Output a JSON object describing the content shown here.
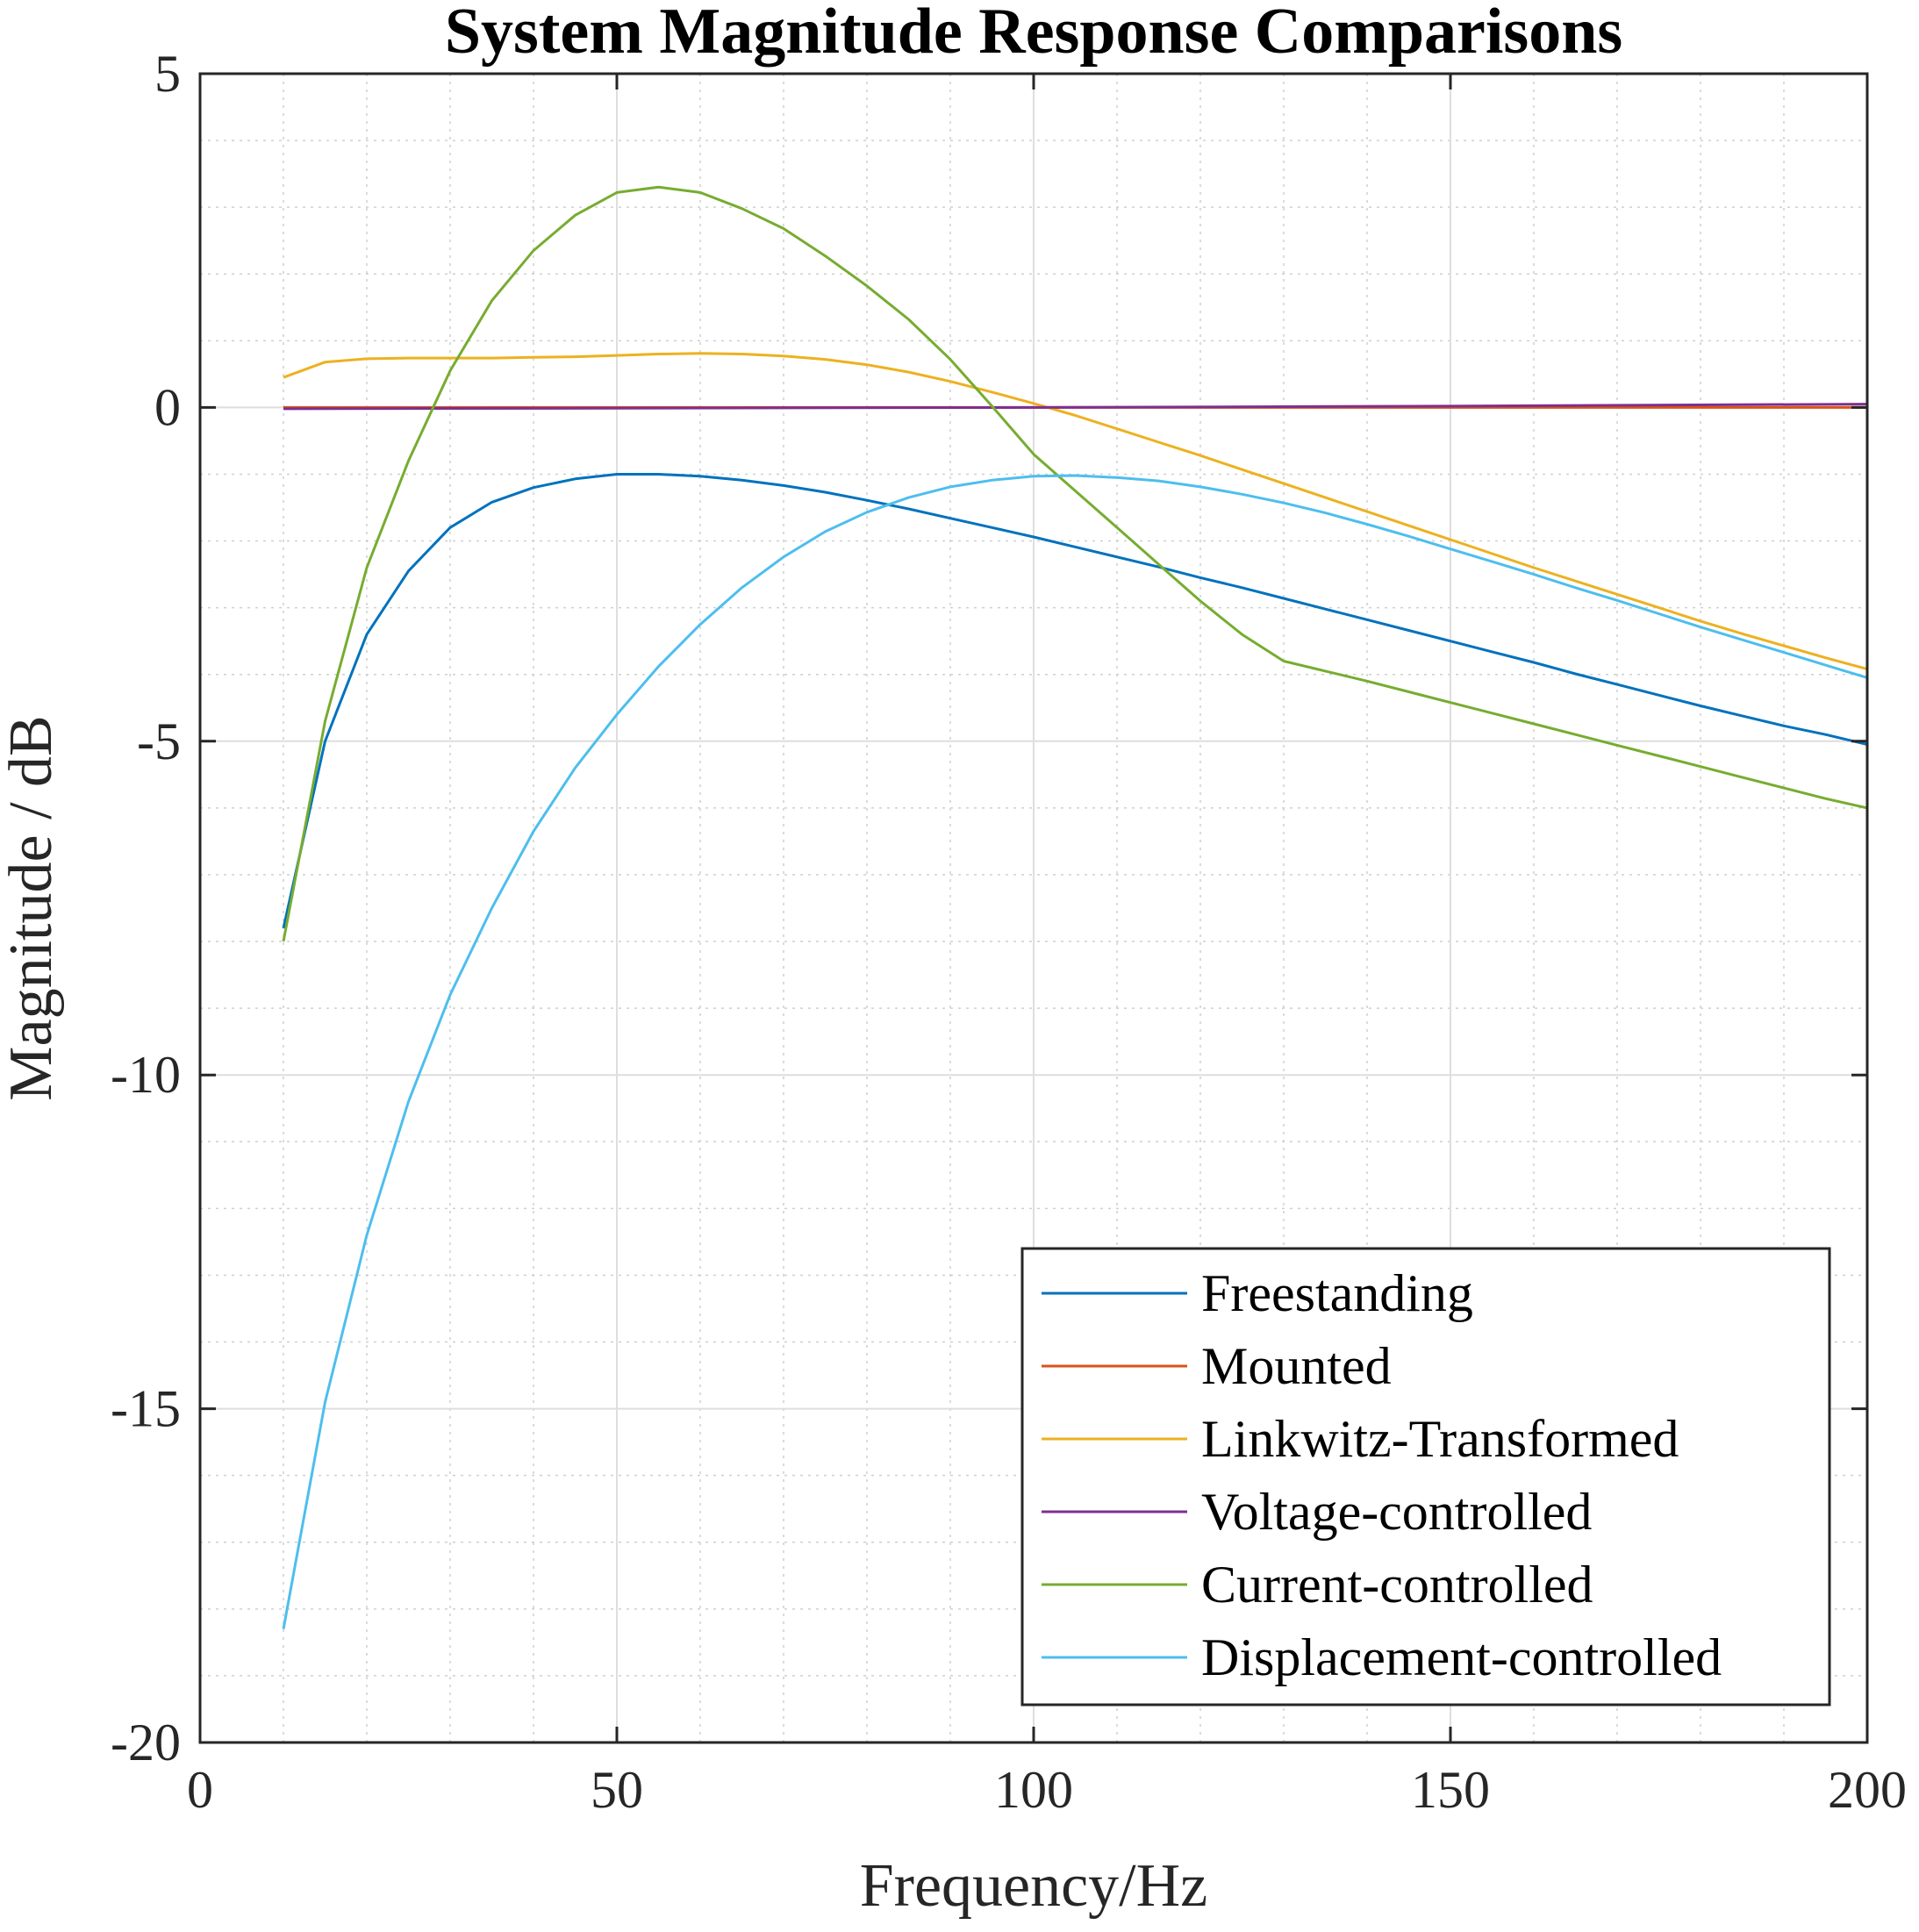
{
  "chart_data": {
    "type": "line",
    "title": "System Magnitude Response Comparisons",
    "xlabel": "Frequency/Hz",
    "ylabel": "Magnitude / dB",
    "xlim": [
      0,
      200
    ],
    "ylim": [
      -20,
      5
    ],
    "xticks": [
      0,
      50,
      100,
      150,
      200
    ],
    "yticks": [
      -20,
      -15,
      -10,
      -5,
      0,
      5
    ],
    "grid": true,
    "minor_grid": true,
    "legend_position": "bottom-right",
    "series": [
      {
        "name": "Freestanding",
        "color": "#0072BD",
        "x": [
          10,
          15,
          20,
          25,
          30,
          35,
          40,
          45,
          50,
          55,
          60,
          65,
          70,
          75,
          80,
          85,
          90,
          95,
          100,
          105,
          110,
          115,
          120,
          125,
          130,
          135,
          140,
          145,
          150,
          155,
          160,
          165,
          170,
          175,
          180,
          185,
          190,
          195,
          200
        ],
        "values": [
          -7.8,
          -5.0,
          -3.4,
          -2.45,
          -1.8,
          -1.42,
          -1.2,
          -1.07,
          -1.0,
          -1.0,
          -1.03,
          -1.09,
          -1.17,
          -1.27,
          -1.39,
          -1.52,
          -1.66,
          -1.8,
          -1.94,
          -2.09,
          -2.24,
          -2.39,
          -2.55,
          -2.7,
          -2.86,
          -3.02,
          -3.18,
          -3.34,
          -3.5,
          -3.66,
          -3.82,
          -3.99,
          -4.15,
          -4.31,
          -4.47,
          -4.62,
          -4.77,
          -4.9,
          -5.05
        ]
      },
      {
        "name": "Mounted",
        "color": "#D95319",
        "x": [
          10,
          200
        ],
        "values": [
          0.0,
          0.0
        ]
      },
      {
        "name": "Linkwitz-Transformed",
        "color": "#EDB120",
        "x": [
          10,
          15,
          20,
          25,
          30,
          35,
          40,
          45,
          50,
          55,
          60,
          65,
          70,
          75,
          80,
          85,
          90,
          95,
          100,
          105,
          110,
          115,
          120,
          125,
          130,
          135,
          140,
          145,
          150,
          155,
          160,
          165,
          170,
          175,
          180,
          185,
          190,
          195,
          200
        ],
        "values": [
          0.45,
          0.68,
          0.73,
          0.74,
          0.74,
          0.74,
          0.75,
          0.76,
          0.78,
          0.8,
          0.81,
          0.8,
          0.77,
          0.72,
          0.64,
          0.53,
          0.39,
          0.23,
          0.06,
          -0.12,
          -0.32,
          -0.52,
          -0.72,
          -0.93,
          -1.14,
          -1.35,
          -1.56,
          -1.77,
          -1.98,
          -2.19,
          -2.4,
          -2.6,
          -2.8,
          -3.0,
          -3.2,
          -3.39,
          -3.57,
          -3.75,
          -3.92
        ]
      },
      {
        "name": "Voltage-controlled",
        "color": "#7E2F8E",
        "x": [
          10,
          50,
          100,
          150,
          200
        ],
        "values": [
          -0.02,
          -0.01,
          0.0,
          0.02,
          0.05
        ]
      },
      {
        "name": "Current-controlled",
        "color": "#77AC30",
        "x": [
          10,
          15,
          20,
          25,
          30,
          35,
          40,
          45,
          50,
          55,
          60,
          65,
          70,
          75,
          80,
          85,
          90,
          95,
          100,
          105,
          110,
          115,
          120,
          125,
          130,
          135,
          140,
          145,
          150,
          155,
          160,
          165,
          170,
          175,
          180,
          185,
          190,
          195,
          200
        ],
        "values": [
          -8.0,
          -4.7,
          -2.4,
          -0.8,
          0.55,
          1.6,
          2.35,
          2.88,
          3.22,
          3.3,
          3.22,
          2.98,
          2.68,
          2.27,
          1.82,
          1.32,
          0.72,
          0.02,
          -0.7,
          -1.25,
          -1.8,
          -2.35,
          -2.9,
          -3.4,
          -3.8,
          -3.95,
          -4.1,
          -4.26,
          -4.42,
          -4.58,
          -4.74,
          -4.9,
          -5.06,
          -5.22,
          -5.38,
          -5.54,
          -5.7,
          -5.86,
          -6.0
        ]
      },
      {
        "name": "Displacement-controlled",
        "color": "#4DBEEE",
        "x": [
          10,
          15,
          20,
          25,
          30,
          35,
          40,
          45,
          50,
          55,
          60,
          65,
          70,
          75,
          80,
          85,
          90,
          95,
          100,
          105,
          110,
          115,
          120,
          125,
          130,
          135,
          140,
          145,
          150,
          155,
          160,
          165,
          170,
          175,
          180,
          185,
          190,
          195,
          200
        ],
        "values": [
          -18.3,
          -14.9,
          -12.4,
          -10.4,
          -8.8,
          -7.5,
          -6.35,
          -5.4,
          -4.6,
          -3.88,
          -3.25,
          -2.7,
          -2.24,
          -1.86,
          -1.57,
          -1.35,
          -1.19,
          -1.09,
          -1.03,
          -1.02,
          -1.05,
          -1.1,
          -1.19,
          -1.3,
          -1.43,
          -1.58,
          -1.75,
          -1.93,
          -2.12,
          -2.31,
          -2.5,
          -2.7,
          -2.89,
          -3.09,
          -3.29,
          -3.48,
          -3.67,
          -3.86,
          -4.05
        ]
      }
    ]
  }
}
